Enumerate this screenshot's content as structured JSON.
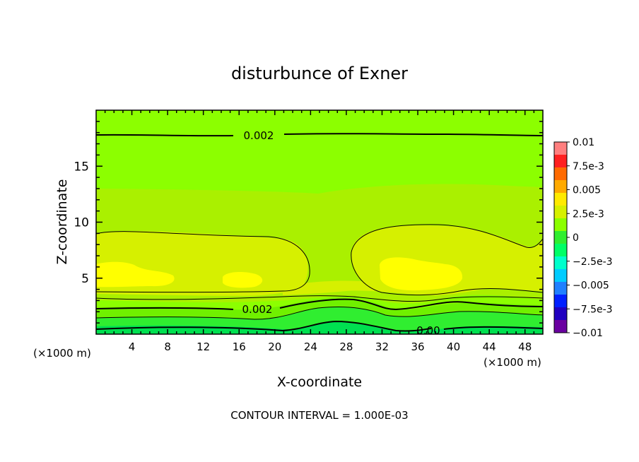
{
  "chart_data": {
    "type": "contour",
    "title": "disturbunce of Exner",
    "xlabel": "X-coordinate",
    "ylabel": "Z-coordinate",
    "x_unit_left": "(×1000 m)",
    "x_unit_right": "(×1000 m)",
    "xlim": [
      0,
      50
    ],
    "ylim": [
      0,
      20
    ],
    "x_ticks": [
      4,
      8,
      12,
      16,
      20,
      24,
      28,
      32,
      36,
      40,
      44,
      48
    ],
    "y_ticks": [
      5,
      10,
      15
    ],
    "contour_interval_text": "CONTOUR INTERVAL = 1.000E-03",
    "contour_labels": [
      {
        "text": "0.002",
        "x": 17.8,
        "z": 17.9
      },
      {
        "text": "0.002",
        "x": 18.2,
        "z": 2.3
      },
      {
        "text": "0.00",
        "x": 37.0,
        "z": 0.3
      }
    ],
    "colorbar": {
      "min": -0.01,
      "max": 0.01,
      "labels": [
        "0.01",
        "7.5e-3",
        "0.005",
        "2.5e-3",
        "0",
        "−2.5e-3",
        "−0.005",
        "−7.5e-3",
        "−0.01"
      ],
      "colors": [
        "#ff7f7f",
        "#ff2020",
        "#ff6a00",
        "#ffaa00",
        "#ffea00",
        "#d6f000",
        "#8cff00",
        "#30ee30",
        "#00ff66",
        "#00ffcc",
        "#00ccff",
        "#2080ff",
        "#0020ff",
        "#2000c0",
        "#6a00a0"
      ]
    },
    "field_bands": {
      "colors": {
        "c0": "#00e050",
        "c1": "#30ee30",
        "c2": "#70f000",
        "c3": "#8cff00",
        "c4": "#aaf000",
        "c5": "#d6f000",
        "c6": "#ffff00"
      }
    }
  }
}
